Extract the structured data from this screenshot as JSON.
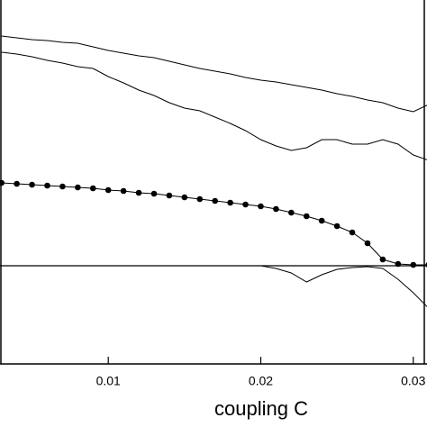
{
  "chart_data": {
    "type": "line",
    "xlabel": "coupling C",
    "x": [
      0.003,
      0.004,
      0.005,
      0.006,
      0.007,
      0.008,
      0.009,
      0.01,
      0.011,
      0.012,
      0.013,
      0.014,
      0.015,
      0.016,
      0.017,
      0.018,
      0.019,
      0.02,
      0.021,
      0.022,
      0.023,
      0.024,
      0.025,
      0.026,
      0.027,
      0.028,
      0.029,
      0.03,
      0.031
    ],
    "series": [
      {
        "color": "#000000",
        "marker": false,
        "values": [
          2.55,
          2.53,
          2.51,
          2.5,
          2.48,
          2.47,
          2.43,
          2.39,
          2.36,
          2.33,
          2.31,
          2.27,
          2.23,
          2.19,
          2.16,
          2.13,
          2.09,
          2.06,
          2.04,
          2.01,
          1.98,
          1.95,
          1.91,
          1.88,
          1.84,
          1.81,
          1.75,
          1.71,
          1.79
        ]
      },
      {
        "color": "#000000",
        "marker": false,
        "values": [
          2.37,
          2.35,
          2.32,
          2.28,
          2.25,
          2.21,
          2.19,
          2.1,
          2.03,
          1.95,
          1.89,
          1.81,
          1.75,
          1.72,
          1.65,
          1.58,
          1.5,
          1.4,
          1.33,
          1.28,
          1.31,
          1.4,
          1.4,
          1.35,
          1.35,
          1.4,
          1.35,
          1.23,
          1.17
        ]
      },
      {
        "color": "#000000",
        "marker": true,
        "values": [
          0.92,
          0.91,
          0.9,
          0.89,
          0.88,
          0.87,
          0.86,
          0.84,
          0.83,
          0.81,
          0.8,
          0.78,
          0.76,
          0.74,
          0.72,
          0.7,
          0.68,
          0.66,
          0.63,
          0.59,
          0.55,
          0.5,
          0.44,
          0.37,
          0.25,
          0.07,
          0.02,
          0.01,
          0.01
        ]
      },
      {
        "color": "#000000",
        "marker": false,
        "values": [
          0,
          0,
          0,
          0,
          0,
          0,
          0,
          0,
          0,
          0,
          0,
          0,
          0,
          0,
          0,
          0,
          0,
          0,
          -0.03,
          -0.08,
          -0.18,
          -0.1,
          -0.04,
          -0.02,
          -0.01,
          -0.03,
          -0.15,
          -0.3,
          -0.47
        ]
      }
    ],
    "hline": 0,
    "xlim": [
      0.0029,
      0.0309
    ],
    "ylim": [
      -1.09,
      2.95
    ],
    "xticks": [
      0.01,
      0.02,
      0.03
    ]
  }
}
